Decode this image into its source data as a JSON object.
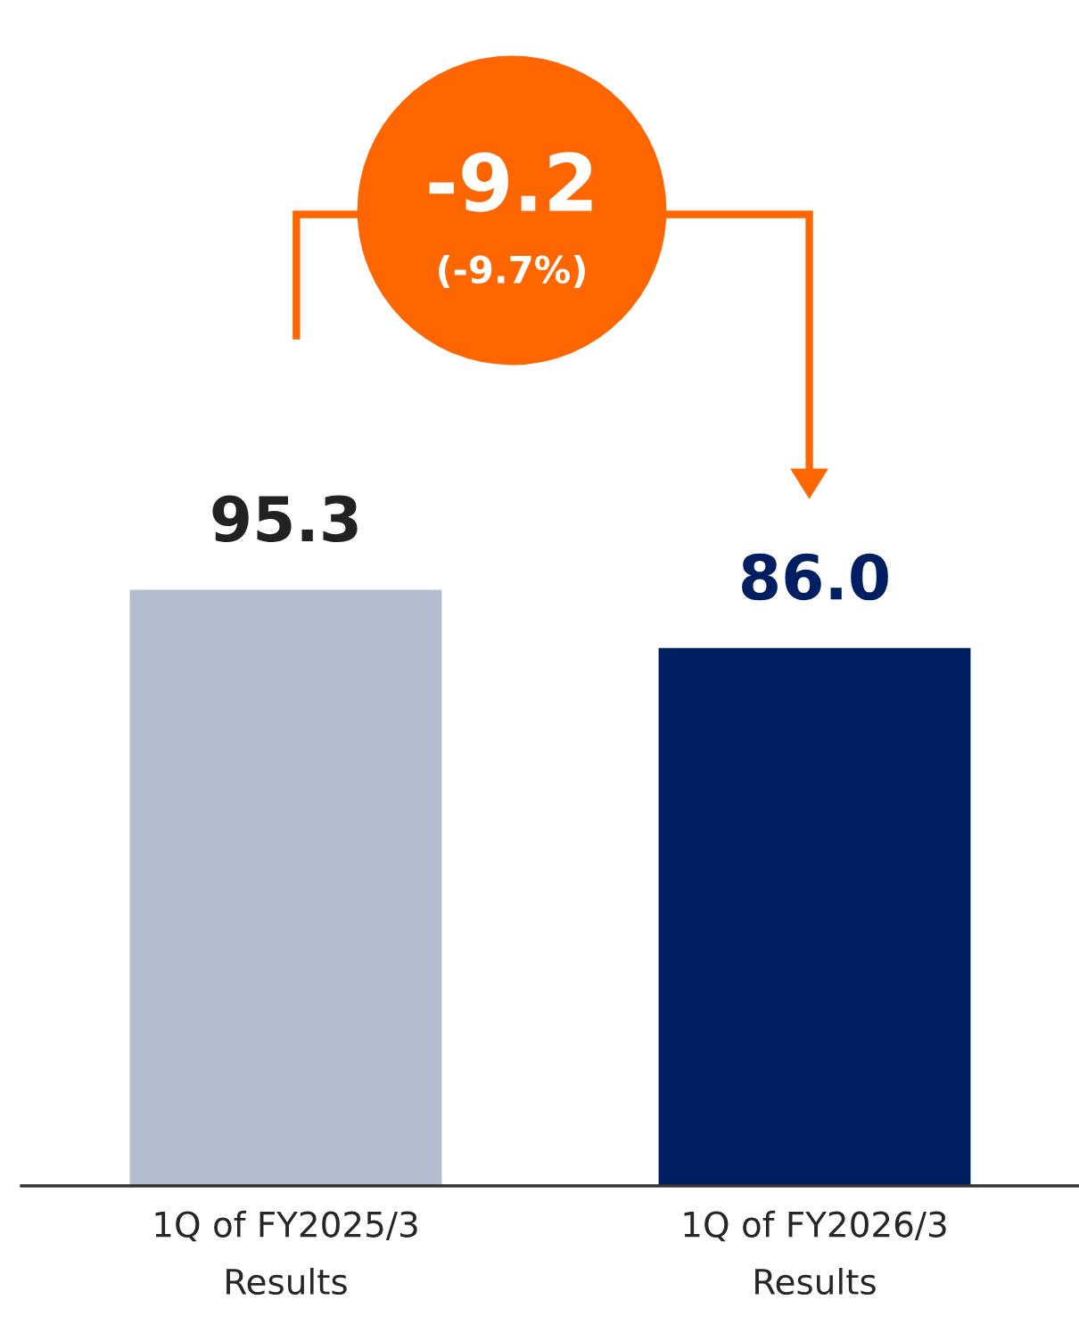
{
  "chart_data": {
    "type": "bar",
    "categories": [
      "1Q of FY2025/3\nResults",
      "1Q of FY2026/3\nResults"
    ],
    "values": [
      95.3,
      86.0
    ],
    "colors": [
      "#b4bcd0",
      "#001e62"
    ],
    "value_labels": [
      "95.3",
      "86.0"
    ],
    "annotations": [
      "-9.2",
      "(-9.7%)"
    ]
  }
}
